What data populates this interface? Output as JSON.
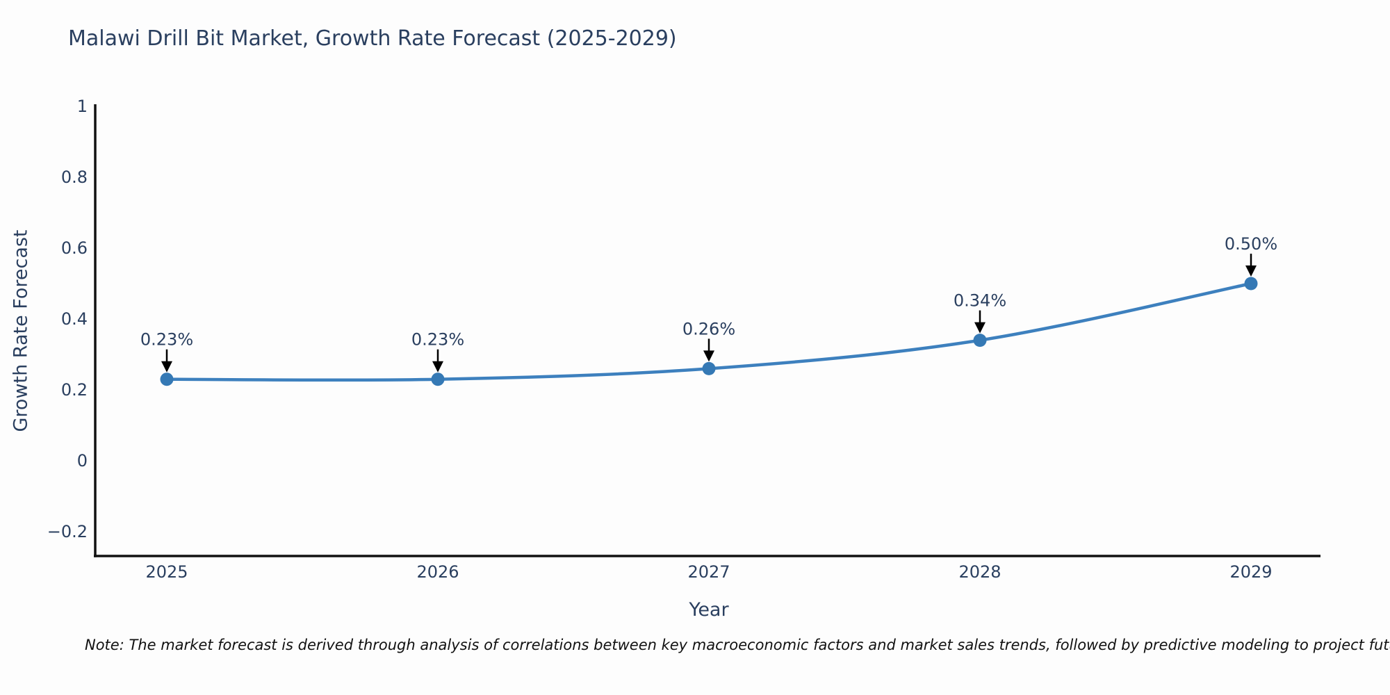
{
  "title": "Malawi Drill Bit Market, Growth Rate Forecast (2025-2029)",
  "footnote": "Note: The market forecast is derived through analysis of correlations between key macroeconomic factors and market sales trends, followed by predictive modeling to project future sales",
  "chart_data": {
    "type": "line",
    "title": "Malawi Drill Bit Market, Growth Rate Forecast (2025-2029)",
    "xlabel": "Year",
    "ylabel": "Growth Rate Forecast",
    "x": [
      2025,
      2026,
      2027,
      2028,
      2029
    ],
    "series": [
      {
        "name": "Growth Rate Forecast",
        "values": [
          0.23,
          0.23,
          0.26,
          0.34,
          0.5
        ]
      }
    ],
    "point_labels": [
      "0.23%",
      "0.23%",
      "0.26%",
      "0.34%",
      "0.50%"
    ],
    "xtick_labels": [
      "2025",
      "2026",
      "2027",
      "2028",
      "2029"
    ],
    "ytick_values": [
      1,
      0.8,
      0.6,
      0.4,
      0.2,
      0,
      -0.2
    ],
    "ytick_labels": [
      "1",
      "0.8",
      "0.6",
      "0.4",
      "0.2",
      "0",
      "−0.2"
    ],
    "ylim": [
      -0.27,
      1.0
    ],
    "grid": false,
    "legend": "none",
    "colors": {
      "line": "#3d80be",
      "marker": "#3579b5",
      "axis": "#111111",
      "text": "#2a3f5f",
      "annotation_arrow": "#000000"
    }
  }
}
